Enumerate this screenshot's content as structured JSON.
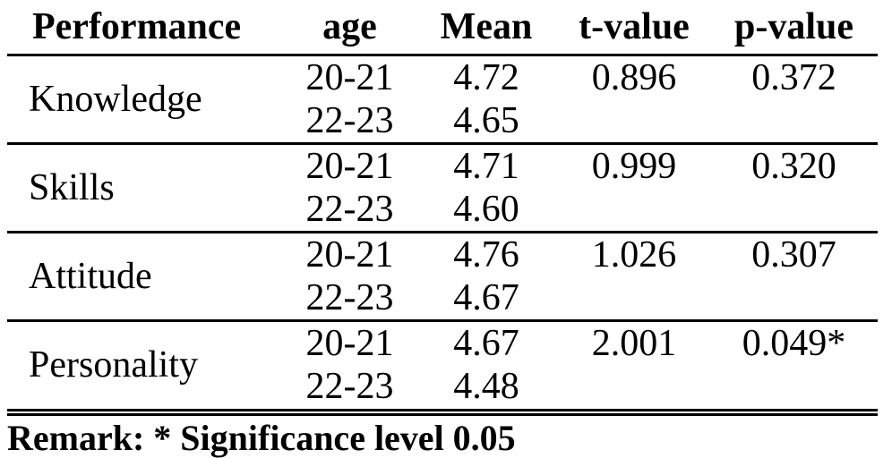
{
  "table": {
    "columns": {
      "performance": "Performance",
      "age": "age",
      "mean": "Mean",
      "t_value": "t-value",
      "p_value": "p-value"
    },
    "groups": [
      {
        "label": "Knowledge",
        "rows": [
          {
            "age": "20-21",
            "mean": "4.72"
          },
          {
            "age": "22-23",
            "mean": "4.65"
          }
        ],
        "t_value": "0.896",
        "p_value": "0.372"
      },
      {
        "label": "Skills",
        "rows": [
          {
            "age": "20-21",
            "mean": "4.71"
          },
          {
            "age": "22-23",
            "mean": "4.60"
          }
        ],
        "t_value": "0.999",
        "p_value": "0.320"
      },
      {
        "label": "Attitude",
        "rows": [
          {
            "age": "20-21",
            "mean": "4.76"
          },
          {
            "age": "22-23",
            "mean": "4.67"
          }
        ],
        "t_value": "1.026",
        "p_value": "0.307"
      },
      {
        "label": "Personality",
        "rows": [
          {
            "age": "20-21",
            "mean": "4.67"
          },
          {
            "age": "22-23",
            "mean": "4.48"
          }
        ],
        "t_value": "2.001",
        "p_value": "0.049*"
      }
    ]
  },
  "footnote": "Remark: * Significance level 0.05",
  "colors": {
    "text": "#000000",
    "background": "#ffffff",
    "rule": "#000000"
  }
}
